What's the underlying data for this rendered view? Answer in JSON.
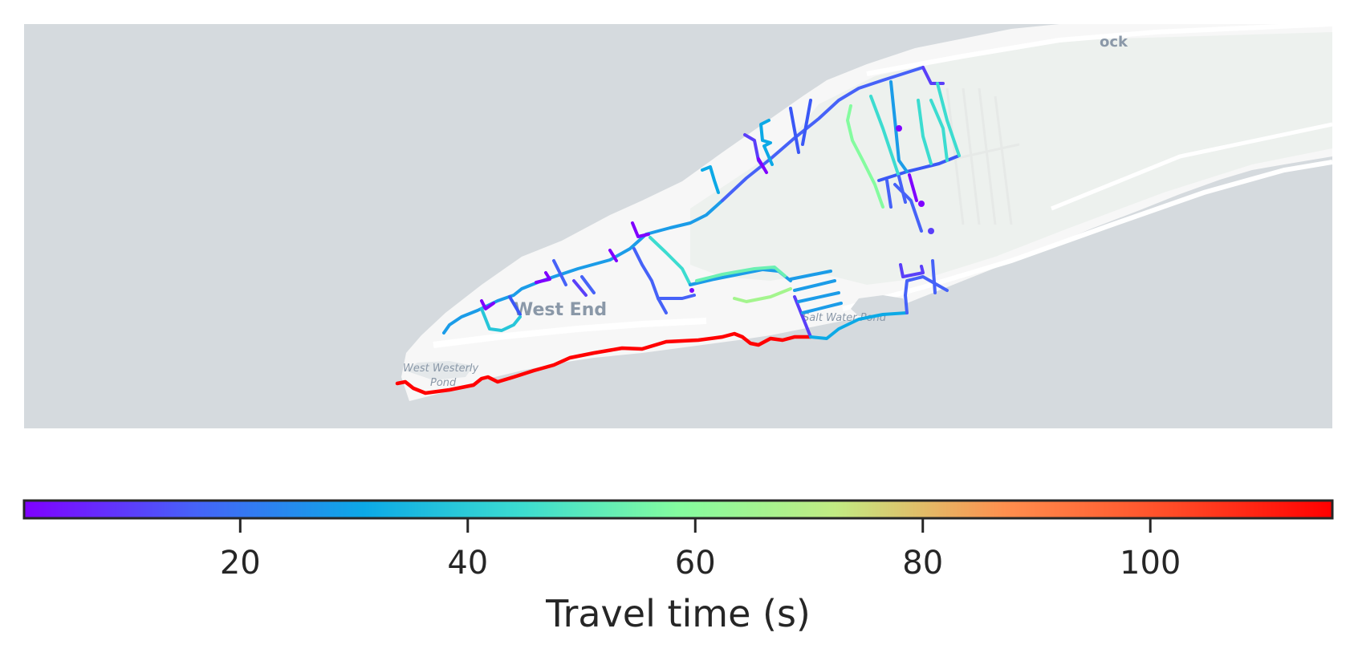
{
  "map": {
    "place_labels": {
      "west_end": "West End",
      "west_westerly_pond_line1": "West Westerly",
      "west_westerly_pond_line2": "Pond",
      "salt_water_pond": "Salt Water Pond",
      "partial_label_top": "ock"
    },
    "colors": {
      "water": "#d5dade",
      "land": "#f7f7f7",
      "vegetation": "#edf1ee",
      "road_casing": "#ffffff"
    }
  },
  "colorbar": {
    "label": "Travel time (s)",
    "min": 1,
    "max": 116,
    "ticks": [
      20,
      40,
      60,
      80,
      100
    ],
    "tick_labels": [
      "20",
      "40",
      "60",
      "80",
      "100"
    ],
    "colormap": "rainbow",
    "stops": [
      "#7f00ff",
      "#4662f8",
      "#0ca9e6",
      "#3cdcd0",
      "#84fc9f",
      "#c2eb83",
      "#ff8f4e",
      "#ff4a26",
      "#ff0000"
    ]
  }
}
